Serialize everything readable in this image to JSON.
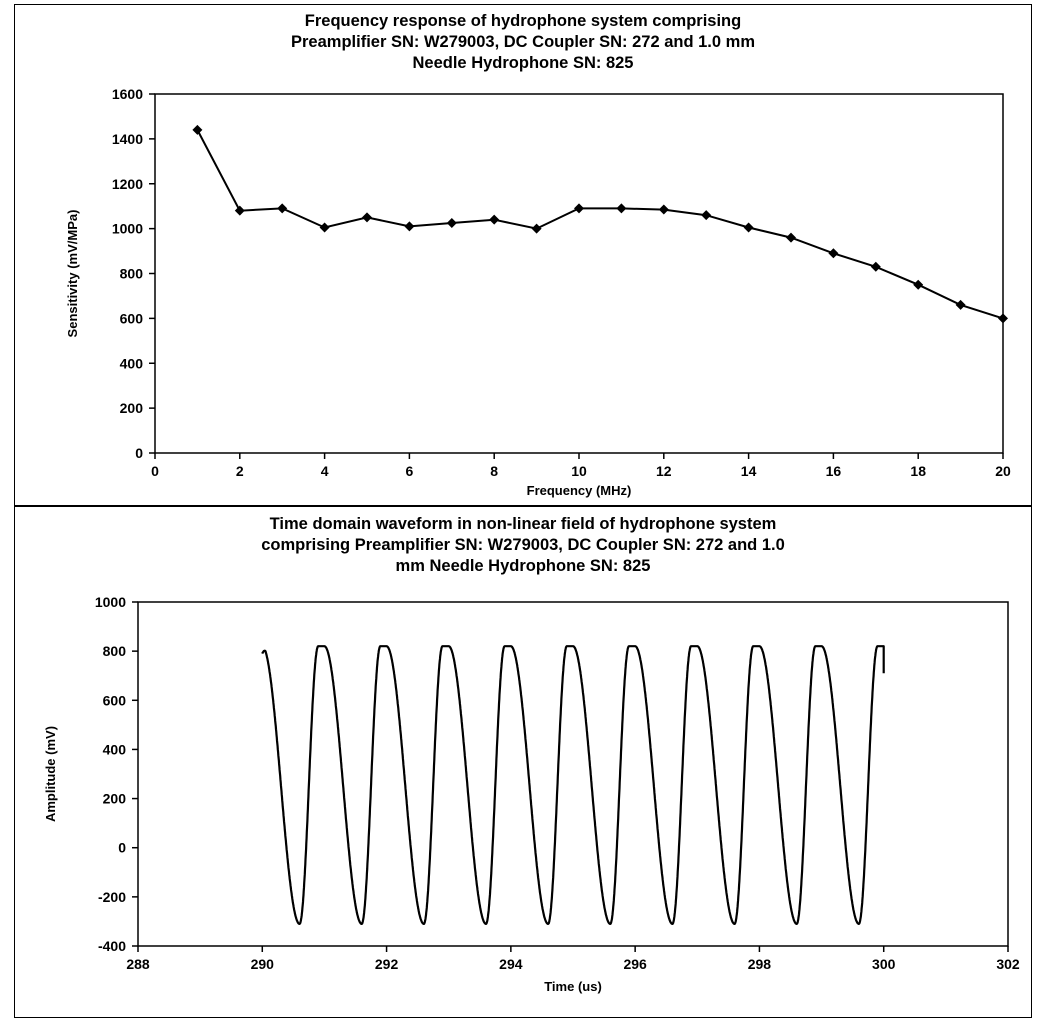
{
  "chart_data": [
    {
      "type": "line",
      "title_lines": [
        "Frequency response of hydrophone system comprising",
        "Preamplifier SN: W279003, DC Coupler SN: 272 and 1.0 mm",
        "Needle Hydrophone SN: 825"
      ],
      "xlabel": "Frequency (MHz)",
      "ylabel": "Sensitivity (mV/MPa)",
      "xlim": [
        0,
        20
      ],
      "ylim": [
        0,
        1600
      ],
      "xticks": [
        "0",
        "2",
        "4",
        "6",
        "8",
        "10",
        "12",
        "14",
        "16",
        "18",
        "20"
      ],
      "yticks": [
        "0",
        "200",
        "400",
        "600",
        "800",
        "1000",
        "1200",
        "1400",
        "1600"
      ],
      "grid": false,
      "markers": "diamond",
      "series": [
        {
          "x": [
            1,
            2,
            3,
            4,
            5,
            6,
            7,
            8,
            9,
            10,
            11,
            12,
            13,
            14,
            15,
            16,
            17,
            18,
            19,
            20
          ],
          "values": [
            1440,
            1080,
            1090,
            1005,
            1050,
            1010,
            1025,
            1040,
            1000,
            1090,
            1090,
            1085,
            1060,
            1005,
            960,
            890,
            830,
            750,
            660,
            600
          ]
        }
      ]
    },
    {
      "type": "line",
      "title_lines": [
        "Time domain waveform in non-linear field of hydrophone system",
        "comprising Preamplifier SN: W279003, DC Coupler SN: 272 and 1.0",
        "mm Needle Hydrophone SN: 825"
      ],
      "xlabel": "Time (us)",
      "ylabel": "Amplitude (mV)",
      "xlim": [
        288,
        302
      ],
      "ylim": [
        -400,
        1000
      ],
      "xticks": [
        "288",
        "290",
        "292",
        "294",
        "296",
        "298",
        "300",
        "302"
      ],
      "yticks": [
        "-400",
        "-200",
        "0",
        "200",
        "400",
        "600",
        "800",
        "1000"
      ],
      "grid": false,
      "waveform": {
        "start_time": 290.0,
        "end_time": 300.0,
        "period": 1.0,
        "start_value": 790,
        "peak": 820,
        "trough": -310,
        "end_value": 710
      }
    }
  ]
}
